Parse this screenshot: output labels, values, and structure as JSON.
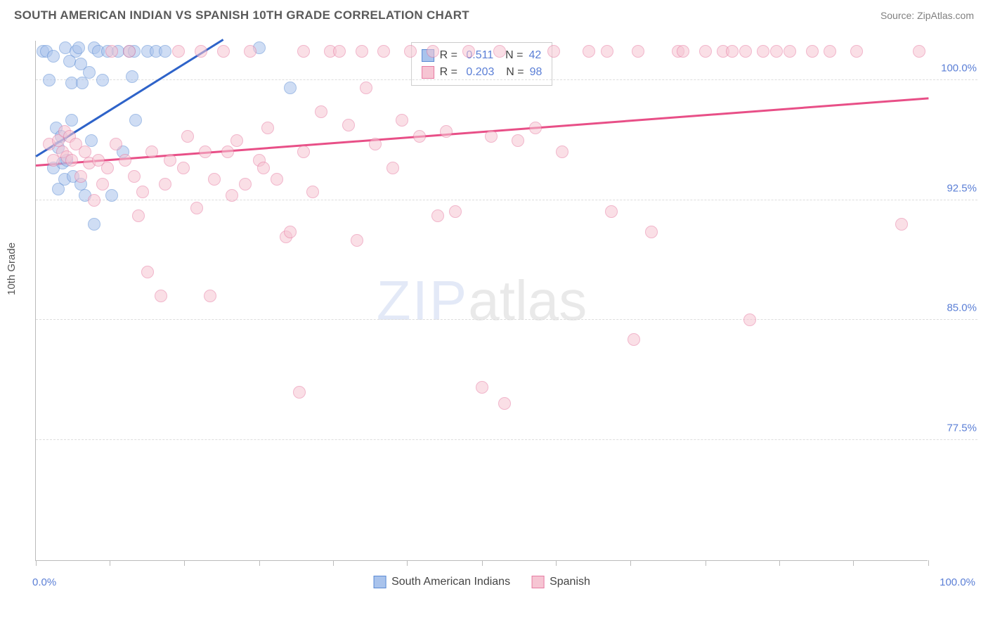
{
  "header": {
    "title": "SOUTH AMERICAN INDIAN VS SPANISH 10TH GRADE CORRELATION CHART",
    "source": "Source: ZipAtlas.com"
  },
  "chart": {
    "type": "scatter",
    "ylabel": "10th Grade",
    "xlim": [
      0,
      100
    ],
    "ylim": [
      70,
      102.5
    ],
    "xtick_positions": [
      0,
      8.3,
      16.6,
      25,
      33.3,
      41.6,
      50,
      58.3,
      66.6,
      75,
      83.3,
      91.6,
      100
    ],
    "ytick_positions": [
      77.5,
      85.0,
      92.5,
      100.0
    ],
    "ytick_labels": [
      "77.5%",
      "85.0%",
      "92.5%",
      "100.0%"
    ],
    "xaxis_min_label": "0.0%",
    "xaxis_max_label": "100.0%",
    "grid_color": "#dddddd",
    "background_color": "#ffffff",
    "marker_radius": 9,
    "marker_opacity": 0.55,
    "series": [
      {
        "name": "South American Indians",
        "color_fill": "#a9c3ec",
        "color_stroke": "#5b8bd4",
        "R": "0.511",
        "N": "42",
        "trend": {
          "x1": 0,
          "y1": 95.2,
          "x2": 21,
          "y2": 102.5,
          "color": "#2e63c9"
        },
        "points": [
          [
            0.8,
            101.8
          ],
          [
            1.2,
            101.8
          ],
          [
            1.5,
            100.0
          ],
          [
            2.0,
            101.5
          ],
          [
            2.0,
            94.5
          ],
          [
            2.3,
            97.0
          ],
          [
            2.5,
            95.8
          ],
          [
            2.5,
            93.2
          ],
          [
            2.8,
            96.5
          ],
          [
            3.0,
            94.8
          ],
          [
            3.2,
            93.8
          ],
          [
            3.3,
            102.0
          ],
          [
            3.5,
            95.0
          ],
          [
            3.8,
            101.2
          ],
          [
            4.0,
            97.5
          ],
          [
            4.0,
            99.8
          ],
          [
            4.2,
            94.0
          ],
          [
            4.5,
            101.8
          ],
          [
            4.8,
            102.0
          ],
          [
            5.0,
            93.5
          ],
          [
            5.0,
            101.0
          ],
          [
            5.2,
            99.8
          ],
          [
            5.5,
            92.8
          ],
          [
            6.0,
            100.5
          ],
          [
            6.2,
            96.2
          ],
          [
            6.5,
            102.0
          ],
          [
            6.5,
            91.0
          ],
          [
            7.0,
            101.8
          ],
          [
            7.5,
            100.0
          ],
          [
            8.0,
            101.8
          ],
          [
            8.5,
            92.8
          ],
          [
            9.2,
            101.8
          ],
          [
            9.8,
            95.5
          ],
          [
            10.5,
            101.8
          ],
          [
            10.8,
            100.2
          ],
          [
            11.0,
            101.8
          ],
          [
            11.2,
            97.5
          ],
          [
            12.5,
            101.8
          ],
          [
            13.5,
            101.8
          ],
          [
            14.5,
            101.8
          ],
          [
            25.0,
            102.0
          ],
          [
            28.5,
            99.5
          ]
        ]
      },
      {
        "name": "Spanish",
        "color_fill": "#f6c5d3",
        "color_stroke": "#e77ba2",
        "R": "0.203",
        "N": "98",
        "trend": {
          "x1": 0,
          "y1": 94.6,
          "x2": 100,
          "y2": 98.8,
          "color": "#e84f87"
        },
        "points": [
          [
            1.5,
            96.0
          ],
          [
            2.0,
            95.0
          ],
          [
            2.5,
            96.2
          ],
          [
            3.0,
            95.5
          ],
          [
            3.2,
            96.8
          ],
          [
            3.5,
            95.2
          ],
          [
            3.8,
            96.5
          ],
          [
            4.0,
            95.0
          ],
          [
            4.5,
            96.0
          ],
          [
            5.0,
            94.0
          ],
          [
            5.5,
            95.5
          ],
          [
            6.0,
            94.8
          ],
          [
            6.5,
            92.5
          ],
          [
            7.0,
            95.0
          ],
          [
            7.5,
            93.5
          ],
          [
            8.0,
            94.5
          ],
          [
            8.5,
            101.8
          ],
          [
            9.0,
            96.0
          ],
          [
            10.0,
            95.0
          ],
          [
            10.5,
            101.8
          ],
          [
            11.0,
            94.0
          ],
          [
            11.5,
            91.5
          ],
          [
            12.0,
            93.0
          ],
          [
            12.5,
            88.0
          ],
          [
            13.0,
            95.5
          ],
          [
            14.0,
            86.5
          ],
          [
            14.5,
            93.5
          ],
          [
            15.0,
            95.0
          ],
          [
            16.0,
            101.8
          ],
          [
            16.5,
            94.5
          ],
          [
            17.0,
            96.5
          ],
          [
            18.0,
            92.0
          ],
          [
            18.5,
            101.8
          ],
          [
            19.0,
            95.5
          ],
          [
            19.5,
            86.5
          ],
          [
            20.0,
            93.8
          ],
          [
            21.0,
            101.8
          ],
          [
            21.5,
            95.5
          ],
          [
            22.0,
            92.8
          ],
          [
            22.5,
            96.2
          ],
          [
            23.5,
            93.5
          ],
          [
            24.0,
            101.8
          ],
          [
            25.0,
            95.0
          ],
          [
            25.5,
            94.5
          ],
          [
            26.0,
            97.0
          ],
          [
            27.0,
            93.8
          ],
          [
            28.0,
            90.2
          ],
          [
            28.5,
            90.5
          ],
          [
            29.5,
            80.5
          ],
          [
            30.0,
            95.5
          ],
          [
            30.0,
            101.8
          ],
          [
            31.0,
            93.0
          ],
          [
            32.0,
            98.0
          ],
          [
            33.0,
            101.8
          ],
          [
            34.0,
            101.8
          ],
          [
            35.0,
            97.2
          ],
          [
            36.0,
            90.0
          ],
          [
            36.5,
            101.8
          ],
          [
            37.0,
            99.5
          ],
          [
            38.0,
            96.0
          ],
          [
            39.0,
            101.8
          ],
          [
            40.0,
            94.5
          ],
          [
            41.0,
            97.5
          ],
          [
            42.0,
            101.8
          ],
          [
            43.0,
            96.5
          ],
          [
            44.5,
            101.8
          ],
          [
            45.0,
            91.5
          ],
          [
            46.0,
            96.8
          ],
          [
            47.0,
            91.8
          ],
          [
            48.5,
            101.8
          ],
          [
            50.0,
            80.8
          ],
          [
            51.0,
            96.5
          ],
          [
            52.0,
            101.8
          ],
          [
            52.5,
            79.8
          ],
          [
            54.0,
            96.2
          ],
          [
            56.0,
            97.0
          ],
          [
            58.0,
            101.8
          ],
          [
            59.0,
            95.5
          ],
          [
            62.0,
            101.8
          ],
          [
            64.0,
            101.8
          ],
          [
            64.5,
            91.8
          ],
          [
            67.0,
            83.8
          ],
          [
            67.5,
            101.8
          ],
          [
            69.0,
            90.5
          ],
          [
            72.0,
            101.8
          ],
          [
            72.5,
            101.8
          ],
          [
            75.0,
            101.8
          ],
          [
            77.0,
            101.8
          ],
          [
            78.0,
            101.8
          ],
          [
            79.5,
            101.8
          ],
          [
            80.0,
            85.0
          ],
          [
            81.5,
            101.8
          ],
          [
            83.0,
            101.8
          ],
          [
            84.5,
            101.8
          ],
          [
            87.0,
            101.8
          ],
          [
            89.0,
            101.8
          ],
          [
            92.0,
            101.8
          ],
          [
            97.0,
            91.0
          ],
          [
            99.0,
            101.8
          ]
        ]
      }
    ],
    "bottom_legend": [
      {
        "label": "South American Indians",
        "fill": "#a9c3ec",
        "stroke": "#5b8bd4"
      },
      {
        "label": "Spanish",
        "fill": "#f6c5d3",
        "stroke": "#e77ba2"
      }
    ],
    "watermark": {
      "part1": "ZIP",
      "part2": "atlas"
    }
  }
}
